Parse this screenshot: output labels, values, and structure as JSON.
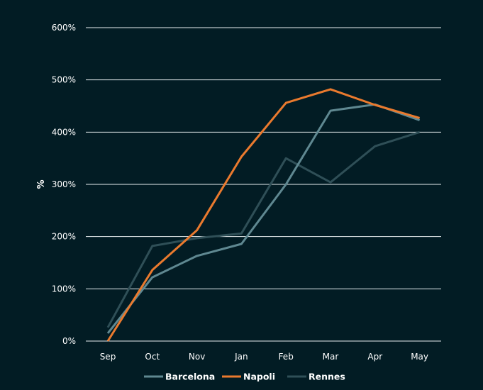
{
  "chart_data": {
    "type": "line",
    "title": "",
    "xlabel": "",
    "ylabel": "%",
    "categories": [
      "Sep",
      "Oct",
      "Nov",
      "Jan",
      "Feb",
      "Mar",
      "Apr",
      "May"
    ],
    "ylim": [
      0,
      600
    ],
    "yticks": [
      0,
      100,
      200,
      300,
      400,
      500,
      600
    ],
    "ytick_labels": [
      "0%",
      "100%",
      "200%",
      "300%",
      "400%",
      "500%",
      "600%"
    ],
    "grid": true,
    "legend_position": "bottom",
    "series": [
      {
        "name": "Barcelona",
        "color": "#5f8891",
        "values": [
          15,
          122,
          163,
          186,
          300,
          441,
          453,
          423
        ]
      },
      {
        "name": "Napoli",
        "color": "#ea7a2e",
        "values": [
          0,
          136,
          212,
          353,
          456,
          482,
          452,
          427
        ]
      },
      {
        "name": "Rennes",
        "color": "#2f4f57",
        "values": [
          26,
          182,
          197,
          206,
          350,
          304,
          373,
          400
        ]
      }
    ]
  }
}
